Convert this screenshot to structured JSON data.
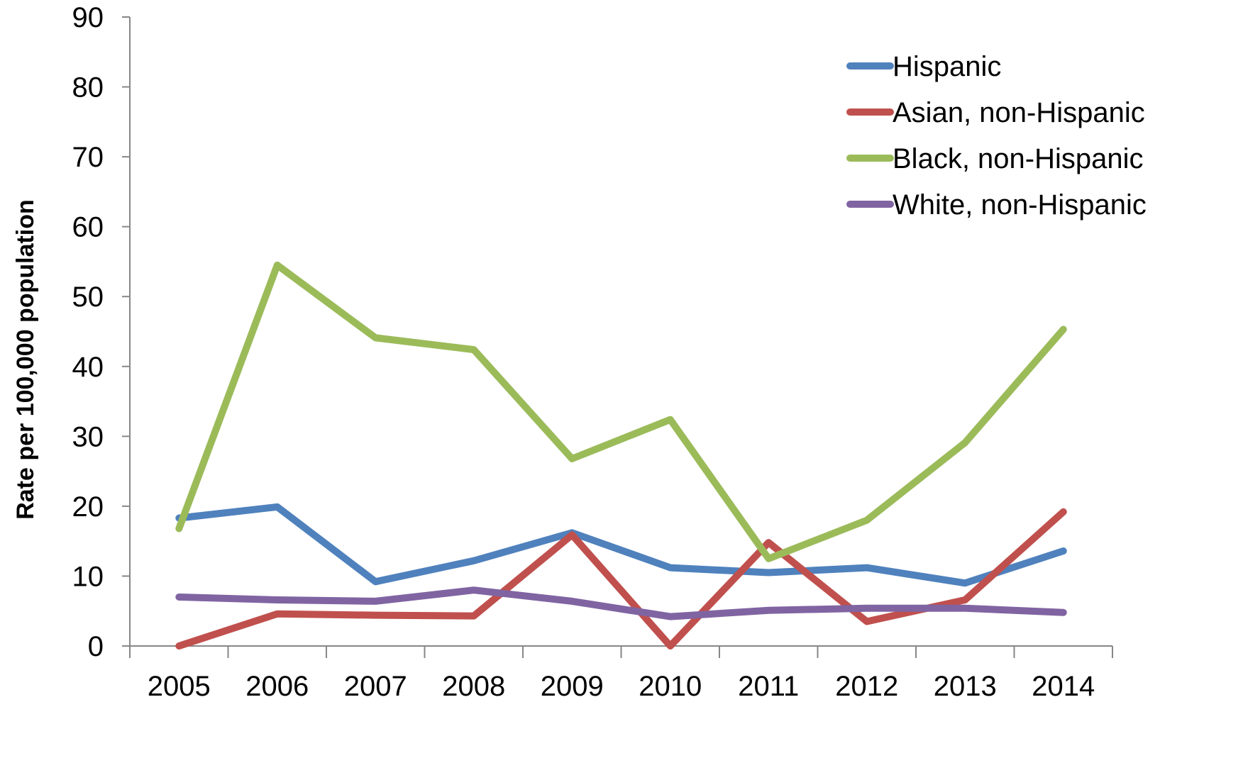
{
  "chart_data": {
    "type": "line",
    "title": "",
    "xlabel": "",
    "ylabel": "Rate per 100,000 population",
    "ylim": [
      0,
      90
    ],
    "yticks": [
      0,
      10,
      20,
      30,
      40,
      50,
      60,
      70,
      80,
      90
    ],
    "categories": [
      "2005",
      "2006",
      "2007",
      "2008",
      "2009",
      "2010",
      "2011",
      "2012",
      "2013",
      "2014"
    ],
    "grid": false,
    "legend_position": "top-right",
    "series": [
      {
        "name": "Hispanic",
        "color": "#4f81bd",
        "values": [
          18.3,
          19.9,
          9.2,
          12.2,
          16.2,
          11.2,
          10.5,
          11.2,
          9.0,
          13.6
        ]
      },
      {
        "name": "Asian, non-Hispanic",
        "color": "#c0504d",
        "values": [
          0.0,
          4.6,
          4.4,
          4.3,
          15.9,
          0.0,
          14.8,
          3.5,
          6.6,
          19.2
        ]
      },
      {
        "name": "Black, non-Hispanic",
        "color": "#9bbb59",
        "values": [
          16.8,
          54.5,
          44.1,
          42.4,
          26.8,
          32.4,
          12.5,
          18.0,
          29.1,
          45.3
        ]
      },
      {
        "name": "White, non-Hispanic",
        "color": "#8064a2",
        "values": [
          7.0,
          6.6,
          6.4,
          8.0,
          6.4,
          4.2,
          5.1,
          5.4,
          5.4,
          4.8
        ]
      }
    ]
  }
}
